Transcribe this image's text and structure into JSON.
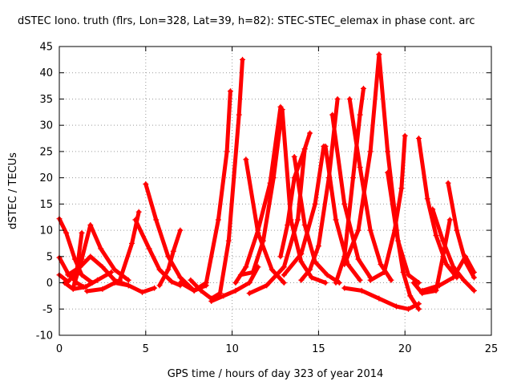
{
  "chart_data": {
    "type": "scatter",
    "title": "dSTEC Iono. truth (flrs, Lon=328, Lat=39, h=82): STEC-STEC_elemax in phase cont. arc",
    "xlabel": "GPS time / hours of day 323 of year 2014",
    "ylabel": "dSTEC  / TECUs",
    "xlim": [
      0,
      25
    ],
    "ylim": [
      -10,
      45
    ],
    "xticks": [
      "0",
      "5",
      "10",
      "15",
      "20",
      "25"
    ],
    "yticks": [
      "-10",
      "-5",
      "0",
      "5",
      "10",
      "15",
      "20",
      "25",
      "30",
      "35",
      "40",
      "45"
    ],
    "grid": true,
    "marker": "+",
    "color": "#ff0000",
    "arcs": [
      [
        [
          0.0,
          12.2
        ],
        [
          0.4,
          9.5
        ],
        [
          0.9,
          4.5
        ],
        [
          1.3,
          1.5
        ],
        [
          1.9,
          0.0
        ]
      ],
      [
        [
          0.0,
          4.8
        ],
        [
          0.5,
          1.8
        ],
        [
          1.0,
          0.0
        ],
        [
          1.4,
          -0.8
        ]
      ],
      [
        [
          0.0,
          1.5
        ],
        [
          0.5,
          0.2
        ],
        [
          1.0,
          2.0
        ],
        [
          1.3,
          9.5
        ]
      ],
      [
        [
          0.3,
          0.0
        ],
        [
          0.8,
          -1.2
        ],
        [
          1.5,
          -0.8
        ],
        [
          2.2,
          0.5
        ],
        [
          3.0,
          2.0
        ]
      ],
      [
        [
          0.5,
          1.5
        ],
        [
          1.2,
          3.0
        ],
        [
          1.8,
          5.0
        ],
        [
          2.5,
          3.0
        ],
        [
          3.2,
          0.5
        ],
        [
          4.0,
          -0.5
        ]
      ],
      [
        [
          0.8,
          -1.0
        ],
        [
          1.3,
          4.5
        ],
        [
          1.8,
          11.0
        ],
        [
          2.4,
          6.5
        ],
        [
          3.2,
          2.5
        ],
        [
          4.0,
          0.5
        ]
      ],
      [
        [
          1.6,
          -1.6
        ],
        [
          2.5,
          -1.2
        ],
        [
          3.5,
          0.5
        ],
        [
          4.2,
          7.5
        ],
        [
          4.6,
          13.5
        ]
      ],
      [
        [
          4.4,
          12.0
        ],
        [
          5.2,
          6.5
        ],
        [
          5.8,
          2.5
        ],
        [
          6.5,
          0.2
        ],
        [
          7.0,
          -0.5
        ]
      ],
      [
        [
          3.2,
          0.0
        ],
        [
          4.0,
          -0.5
        ],
        [
          4.8,
          -1.8
        ],
        [
          5.5,
          -1.0
        ]
      ],
      [
        [
          5.0,
          18.8
        ],
        [
          5.6,
          12.0
        ],
        [
          6.3,
          5.0
        ],
        [
          7.0,
          1.0
        ],
        [
          7.8,
          -1.5
        ],
        [
          8.5,
          -0.5
        ]
      ],
      [
        [
          5.8,
          -0.5
        ],
        [
          6.3,
          2.5
        ],
        [
          6.6,
          6.0
        ],
        [
          7.0,
          10.0
        ]
      ],
      [
        [
          7.0,
          0.0
        ],
        [
          7.8,
          -1.5
        ],
        [
          8.5,
          0.0
        ],
        [
          9.2,
          12.0
        ],
        [
          9.7,
          25.0
        ],
        [
          9.9,
          36.5
        ]
      ],
      [
        [
          7.6,
          0.5
        ],
        [
          8.2,
          -1.5
        ],
        [
          8.8,
          -3.0
        ],
        [
          9.3,
          -2.0
        ],
        [
          9.8,
          8.0
        ],
        [
          10.4,
          32.0
        ],
        [
          10.6,
          42.5
        ]
      ],
      [
        [
          8.8,
          -3.5
        ],
        [
          9.5,
          -2.5
        ],
        [
          10.2,
          -1.5
        ],
        [
          11.0,
          0.0
        ],
        [
          11.5,
          3.0
        ]
      ],
      [
        [
          10.8,
          23.5
        ],
        [
          11.5,
          9.5
        ],
        [
          12.3,
          2.5
        ],
        [
          13.0,
          0.0
        ]
      ],
      [
        [
          10.5,
          1.5
        ],
        [
          11.2,
          2.0
        ],
        [
          11.8,
          8.0
        ],
        [
          12.4,
          20.0
        ],
        [
          12.9,
          33.0
        ]
      ],
      [
        [
          10.2,
          0.0
        ],
        [
          10.8,
          3.0
        ],
        [
          11.5,
          10.0
        ],
        [
          12.2,
          19.0
        ],
        [
          12.8,
          33.5
        ]
      ],
      [
        [
          12.9,
          33.0
        ],
        [
          13.4,
          12.0
        ],
        [
          14.0,
          4.0
        ],
        [
          14.6,
          1.0
        ],
        [
          15.4,
          0.0
        ]
      ],
      [
        [
          11.0,
          -2.0
        ],
        [
          12.0,
          -0.5
        ],
        [
          13.0,
          3.0
        ],
        [
          13.8,
          12.0
        ],
        [
          14.2,
          25.5
        ]
      ],
      [
        [
          12.8,
          5.0
        ],
        [
          13.2,
          11.0
        ],
        [
          13.6,
          20.0
        ],
        [
          14.2,
          25.5
        ],
        [
          14.5,
          28.5
        ]
      ],
      [
        [
          13.6,
          24.0
        ],
        [
          14.2,
          11.0
        ],
        [
          14.8,
          4.0
        ],
        [
          15.5,
          1.5
        ],
        [
          16.2,
          0.0
        ]
      ],
      [
        [
          14.0,
          0.5
        ],
        [
          14.5,
          2.5
        ],
        [
          15.0,
          7.0
        ],
        [
          15.6,
          20.0
        ],
        [
          16.1,
          35.0
        ]
      ],
      [
        [
          13.0,
          1.5
        ],
        [
          14.0,
          5.5
        ],
        [
          14.8,
          15.0
        ],
        [
          15.3,
          26.0
        ]
      ],
      [
        [
          15.4,
          26.0
        ],
        [
          16.0,
          12.0
        ],
        [
          16.7,
          3.5
        ],
        [
          17.4,
          0.5
        ]
      ],
      [
        [
          15.8,
          32.0
        ],
        [
          16.5,
          15.0
        ],
        [
          17.3,
          4.5
        ],
        [
          18.0,
          1.0
        ]
      ],
      [
        [
          16.0,
          0.0
        ],
        [
          16.5,
          5.0
        ],
        [
          17.0,
          20.0
        ],
        [
          17.4,
          32.0
        ],
        [
          17.6,
          37.0
        ]
      ],
      [
        [
          16.8,
          35.0
        ],
        [
          17.4,
          22.0
        ],
        [
          18.0,
          10.0
        ],
        [
          18.6,
          3.5
        ],
        [
          19.2,
          0.5
        ]
      ],
      [
        [
          16.5,
          3.5
        ],
        [
          17.3,
          10.0
        ],
        [
          18.0,
          25.0
        ],
        [
          18.5,
          43.5
        ]
      ],
      [
        [
          18.5,
          43.5
        ],
        [
          19.0,
          25.0
        ],
        [
          19.6,
          8.0
        ],
        [
          20.2,
          1.5
        ],
        [
          20.8,
          0.0
        ]
      ],
      [
        [
          18.0,
          0.5
        ],
        [
          18.8,
          2.0
        ],
        [
          19.4,
          10.0
        ],
        [
          19.8,
          18.0
        ],
        [
          20.0,
          28.0
        ]
      ],
      [
        [
          19.0,
          21.0
        ],
        [
          19.5,
          10.0
        ],
        [
          19.9,
          2.0
        ],
        [
          20.3,
          -2.5
        ],
        [
          20.8,
          -5.0
        ]
      ],
      [
        [
          16.5,
          -1.0
        ],
        [
          17.5,
          -1.5
        ],
        [
          18.5,
          -3.0
        ],
        [
          19.5,
          -4.5
        ],
        [
          20.2,
          -5.0
        ],
        [
          20.8,
          -4.0
        ]
      ],
      [
        [
          20.8,
          27.5
        ],
        [
          21.3,
          16.0
        ],
        [
          21.8,
          9.0
        ],
        [
          22.4,
          3.5
        ],
        [
          23.0,
          1.0
        ]
      ],
      [
        [
          20.5,
          0.0
        ],
        [
          21.0,
          -2.0
        ],
        [
          21.8,
          -1.5
        ],
        [
          22.2,
          5.0
        ],
        [
          22.6,
          12.0
        ]
      ],
      [
        [
          22.5,
          19.0
        ],
        [
          23.0,
          10.0
        ],
        [
          23.5,
          4.0
        ],
        [
          24.0,
          1.0
        ]
      ],
      [
        [
          21.6,
          14.0
        ],
        [
          22.2,
          8.0
        ],
        [
          22.8,
          3.0
        ],
        [
          23.4,
          0.5
        ],
        [
          24.0,
          -1.5
        ]
      ],
      [
        [
          21.0,
          -1.5
        ],
        [
          22.0,
          -0.5
        ],
        [
          22.8,
          1.0
        ],
        [
          23.5,
          5.0
        ],
        [
          24.0,
          2.0
        ]
      ]
    ]
  }
}
